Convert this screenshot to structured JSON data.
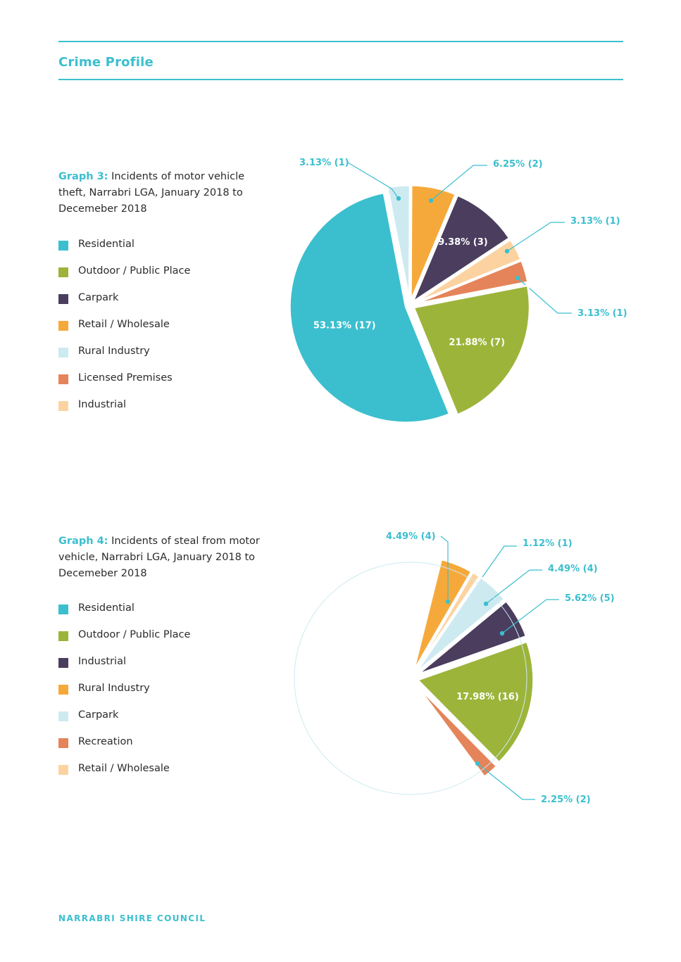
{
  "header": {
    "title": "Crime Profile"
  },
  "footer": {
    "text": "NARRABRI SHIRE COUNCIL"
  },
  "chart_data": [
    {
      "type": "pie",
      "caption_label": "Graph 3:",
      "caption_text": "Incidents of motor vehicle theft, Narrabri LGA, January 2018 to Decemeber 2018",
      "legend": [
        {
          "label": "Residential",
          "color": "#3bbfce"
        },
        {
          "label": "Outdoor / Public Place",
          "color": "#9db43b"
        },
        {
          "label": "Carpark",
          "color": "#4a3d5e"
        },
        {
          "label": "Retail / Wholesale",
          "color": "#f6a93b"
        },
        {
          "label": "Rural Industry",
          "color": "#cdeaf0"
        },
        {
          "label": "Licensed Premises",
          "color": "#e5845a"
        },
        {
          "label": "Industrial",
          "color": "#fcd3a0"
        }
      ],
      "slices": [
        {
          "category": "Rural Industry",
          "percent": 3.13,
          "count": 1,
          "label": "3.13% (1)"
        },
        {
          "category": "Retail / Wholesale",
          "percent": 6.25,
          "count": 2,
          "label": "6.25% (2)"
        },
        {
          "category": "Carpark",
          "percent": 9.38,
          "count": 3,
          "label": "9.38% (3)"
        },
        {
          "category": "Industrial",
          "percent": 3.13,
          "count": 1,
          "label": "3.13% (1)"
        },
        {
          "category": "Licensed Premises",
          "percent": 3.13,
          "count": 1,
          "label": "3.13% (1)"
        },
        {
          "category": "Outdoor / Public Place",
          "percent": 21.88,
          "count": 7,
          "label": "21.88% (7)"
        },
        {
          "category": "Residential",
          "percent": 53.13,
          "count": 17,
          "label": "53.13% (17)"
        }
      ]
    },
    {
      "type": "pie",
      "caption_label": "Graph 4:",
      "caption_text": "Incidents of steal from motor vehicle, Narrabri LGA, January 2018 to Decemeber 2018",
      "legend": [
        {
          "label": "Residential",
          "color": "#3bbfce"
        },
        {
          "label": "Outdoor / Public Place",
          "color": "#9db43b"
        },
        {
          "label": "Industrial",
          "color": "#4a3d5e"
        },
        {
          "label": "Rural Industry",
          "color": "#f6a93b"
        },
        {
          "label": "Carpark",
          "color": "#cdeaf0"
        },
        {
          "label": "Recreation",
          "color": "#e5845a"
        },
        {
          "label": "Retail / Wholesale",
          "color": "#fcd3a0"
        }
      ],
      "slices": [
        {
          "category": "Rural Industry",
          "percent": 4.49,
          "count": 4,
          "label": "4.49% (4)"
        },
        {
          "category": "Retail / Wholesale",
          "percent": 1.12,
          "count": 1,
          "label": "1.12% (1)"
        },
        {
          "category": "Carpark",
          "percent": 4.49,
          "count": 4,
          "label": "4.49% (4)"
        },
        {
          "category": "Industrial",
          "percent": 5.62,
          "count": 5,
          "label": "5.62% (5)"
        },
        {
          "category": "Outdoor / Public Place",
          "percent": 17.98,
          "count": 16,
          "label": "17.98% (16)"
        },
        {
          "category": "Recreation",
          "percent": 2.25,
          "count": 2,
          "label": "2.25% (2)"
        },
        {
          "category": "Residential",
          "hidden": true
        }
      ]
    }
  ]
}
